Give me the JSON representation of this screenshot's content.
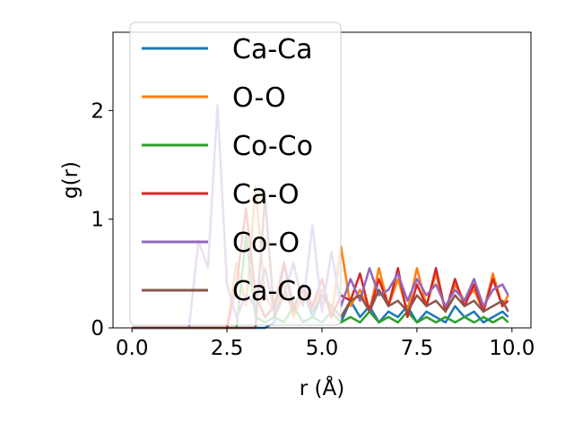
{
  "chart_data": {
    "type": "line",
    "xlabel": "r (Å)",
    "ylabel": "g(r)",
    "xlim": [
      -0.5,
      10.5
    ],
    "ylim": [
      0,
      2.72
    ],
    "xticks": [
      0.0,
      2.5,
      5.0,
      7.5,
      10.0
    ],
    "xtick_labels": [
      "0.0",
      "2.5",
      "5.0",
      "7.5",
      "10.0"
    ],
    "yticks": [
      0,
      1,
      2
    ],
    "ytick_labels": [
      "0",
      "1",
      "2"
    ],
    "legend_position": "upper-left",
    "grid": false,
    "x": [
      0.0,
      0.25,
      0.5,
      0.75,
      1.0,
      1.25,
      1.5,
      1.75,
      2.0,
      2.25,
      2.5,
      2.75,
      3.0,
      3.25,
      3.5,
      3.75,
      4.0,
      4.25,
      4.5,
      4.75,
      5.0,
      5.25,
      5.5,
      5.75,
      6.0,
      6.25,
      6.5,
      6.75,
      7.0,
      7.25,
      7.5,
      7.75,
      8.0,
      8.25,
      8.5,
      8.75,
      9.0,
      9.25,
      9.5,
      9.75,
      9.9
    ],
    "series": [
      {
        "name": "Ca-Ca",
        "color": "#1f77b4",
        "values": [
          0,
          0,
          0,
          0,
          0,
          0,
          0,
          0,
          0,
          0,
          0,
          0,
          0,
          0,
          0,
          0.05,
          0.6,
          0.2,
          0.35,
          0.1,
          0.3,
          0.15,
          0.05,
          0.25,
          0.1,
          0.2,
          0.05,
          0.15,
          0.1,
          0.2,
          0.05,
          0.15,
          0.1,
          0.05,
          0.2,
          0.1,
          0.15,
          0.05,
          0.1,
          0.15,
          0.1
        ]
      },
      {
        "name": "O-O",
        "color": "#ff7f0e",
        "values": [
          0,
          0,
          0,
          0,
          0,
          0,
          0,
          0,
          0,
          0,
          0,
          0.6,
          0.2,
          1.3,
          0.3,
          0.15,
          0.4,
          0.1,
          0.3,
          0.2,
          0.35,
          0.1,
          0.75,
          0.2,
          0.35,
          0.15,
          0.55,
          0.2,
          0.45,
          0.15,
          0.55,
          0.2,
          0.5,
          0.15,
          0.4,
          0.25,
          0.35,
          0.15,
          0.5,
          0.2,
          0.3
        ]
      },
      {
        "name": "Co-Co",
        "color": "#2ca02c",
        "values": [
          0,
          0,
          0,
          0,
          0,
          0,
          0,
          0,
          0,
          0,
          0,
          0,
          0.85,
          0.1,
          0.05,
          0.1,
          0.05,
          0.2,
          0.05,
          0.1,
          0.05,
          0.15,
          0.05,
          0.1,
          0.05,
          0.15,
          0.05,
          0.1,
          0.05,
          0.15,
          0.05,
          0.1,
          0.05,
          0.1,
          0.05,
          0.1,
          0.05,
          0.1,
          0.05,
          0.1,
          0.05
        ]
      },
      {
        "name": "Ca-O",
        "color": "#d62728",
        "values": [
          0,
          0,
          0,
          0,
          0,
          0,
          0,
          0,
          0,
          0,
          0,
          0.4,
          1.1,
          0.3,
          0.1,
          0.2,
          0.6,
          0.15,
          0.4,
          0.2,
          0.45,
          0.1,
          0.3,
          0.25,
          0.5,
          0.15,
          0.45,
          0.2,
          0.55,
          0.1,
          0.4,
          0.2,
          0.55,
          0.15,
          0.45,
          0.2,
          0.4,
          0.15,
          0.45,
          0.2,
          0.25
        ]
      },
      {
        "name": "Co-O",
        "color": "#9467bd",
        "values": [
          0,
          0,
          0,
          0,
          0,
          0,
          0,
          0.8,
          0.55,
          2.05,
          0.4,
          0.1,
          0.3,
          0.2,
          0.55,
          0.15,
          0.3,
          0.6,
          0.2,
          0.95,
          0.15,
          0.7,
          0.2,
          0.45,
          0.25,
          0.55,
          0.3,
          0.35,
          0.5,
          0.25,
          0.45,
          0.3,
          0.4,
          0.2,
          0.35,
          0.25,
          0.45,
          0.2,
          0.35,
          0.4,
          0.3
        ]
      },
      {
        "name": "Ca-Co",
        "color": "#8c564b",
        "values": [
          0,
          0,
          0,
          0,
          0,
          0,
          0,
          0,
          0,
          0,
          0,
          0,
          0,
          0,
          1.2,
          0.1,
          0.3,
          0.2,
          0.35,
          0.15,
          0.3,
          0.2,
          0.1,
          0.25,
          0.3,
          0.15,
          0.35,
          0.2,
          0.25,
          0.15,
          0.3,
          0.2,
          0.25,
          0.15,
          0.3,
          0.2,
          0.25,
          0.15,
          0.2,
          0.25,
          0.15
        ]
      }
    ]
  }
}
